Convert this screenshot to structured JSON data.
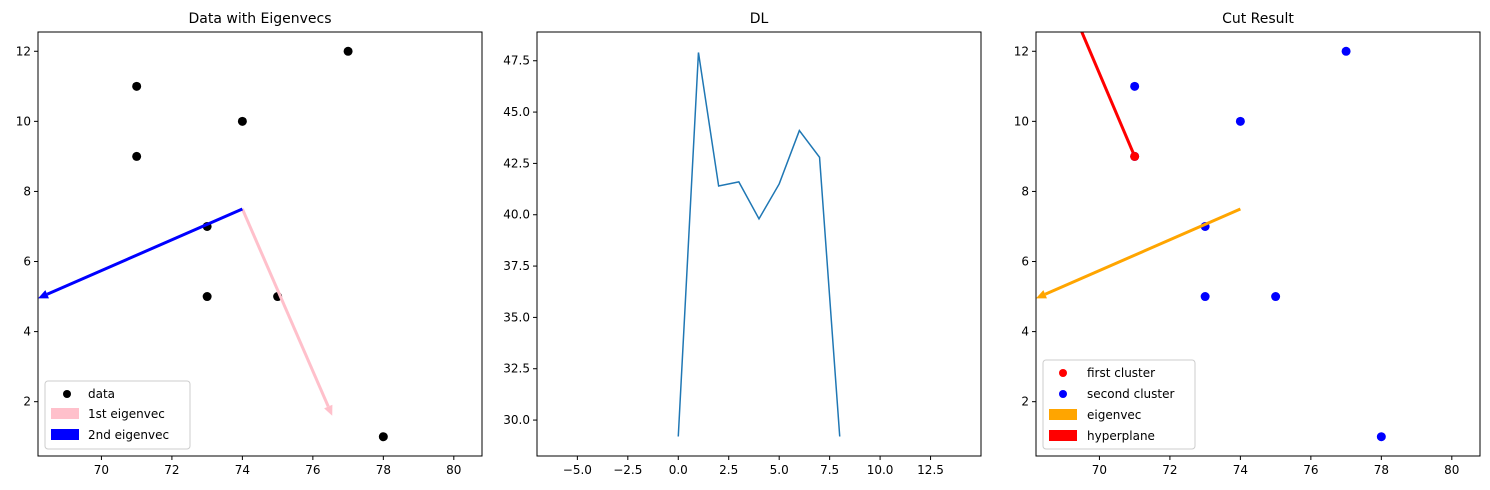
{
  "chart_data": [
    {
      "type": "scatter",
      "title": "Data with Eigenvecs",
      "xlabel": "",
      "ylabel": "",
      "xlim": [
        68.2,
        80.8
      ],
      "ylim": [
        0.45,
        12.55
      ],
      "xticks": [
        70,
        72,
        74,
        76,
        78,
        80
      ],
      "yticks": [
        2,
        4,
        6,
        8,
        10,
        12
      ],
      "grid": false,
      "legend_position": "lower-left",
      "points": {
        "name": "data",
        "color": "#000000",
        "x": [
          71,
          71,
          74,
          77,
          73,
          73,
          75,
          78
        ],
        "y": [
          11,
          9,
          10,
          12,
          7,
          5,
          5,
          1
        ]
      },
      "arrows": [
        {
          "name": "1st eigenvec",
          "color": "#ffc0cb",
          "from": [
            74,
            7.5
          ],
          "to": [
            76.55,
            1.6
          ]
        },
        {
          "name": "2nd eigenvec",
          "color": "#0000ff",
          "from": [
            74,
            7.5
          ],
          "to": [
            68.2,
            4.95
          ]
        }
      ],
      "legend": [
        "data",
        "1st eigenvec",
        "2nd eigenvec"
      ]
    },
    {
      "type": "line",
      "title": "DL",
      "xlabel": "",
      "ylabel": "",
      "xlim": [
        -7,
        15
      ],
      "ylim": [
        28.25,
        48.9
      ],
      "xticks": [
        -5.0,
        -2.5,
        0.0,
        2.5,
        5.0,
        7.5,
        10.0,
        12.5
      ],
      "yticks": [
        30.0,
        32.5,
        35.0,
        37.5,
        40.0,
        42.5,
        45.0,
        47.5
      ],
      "grid": false,
      "series": [
        {
          "color": "#1f77b4",
          "x": [
            0,
            1,
            2,
            3,
            4,
            5,
            6,
            7,
            8
          ],
          "y": [
            29.2,
            47.9,
            41.4,
            41.6,
            39.8,
            41.5,
            44.1,
            42.8,
            29.2
          ]
        }
      ]
    },
    {
      "type": "scatter",
      "title": "Cut Result",
      "xlabel": "",
      "ylabel": "",
      "xlim": [
        68.2,
        80.8
      ],
      "ylim": [
        0.45,
        12.55
      ],
      "xticks": [
        70,
        72,
        74,
        76,
        78,
        80
      ],
      "yticks": [
        2,
        4,
        6,
        8,
        10,
        12
      ],
      "grid": false,
      "legend_position": "lower-left",
      "series": [
        {
          "name": "first cluster",
          "color": "#ff0000",
          "x": [
            71
          ],
          "y": [
            9
          ]
        },
        {
          "name": "second cluster",
          "color": "#0000ff",
          "x": [
            71,
            71,
            74,
            77,
            73,
            73,
            75,
            78
          ],
          "y": [
            11,
            9,
            10,
            12,
            7,
            5,
            5,
            1
          ]
        }
      ],
      "arrows": [
        {
          "name": "eigenvec",
          "color": "#ffa500",
          "from": [
            74,
            7.5
          ],
          "to": [
            68.2,
            4.95
          ]
        }
      ],
      "lines": [
        {
          "name": "hyperplane",
          "color": "#ff0000",
          "from": [
            71,
            9
          ],
          "to": [
            69.5,
            12.55
          ]
        }
      ],
      "legend": [
        "first cluster",
        "second cluster",
        "eigenvec",
        "hyperplane"
      ]
    }
  ]
}
